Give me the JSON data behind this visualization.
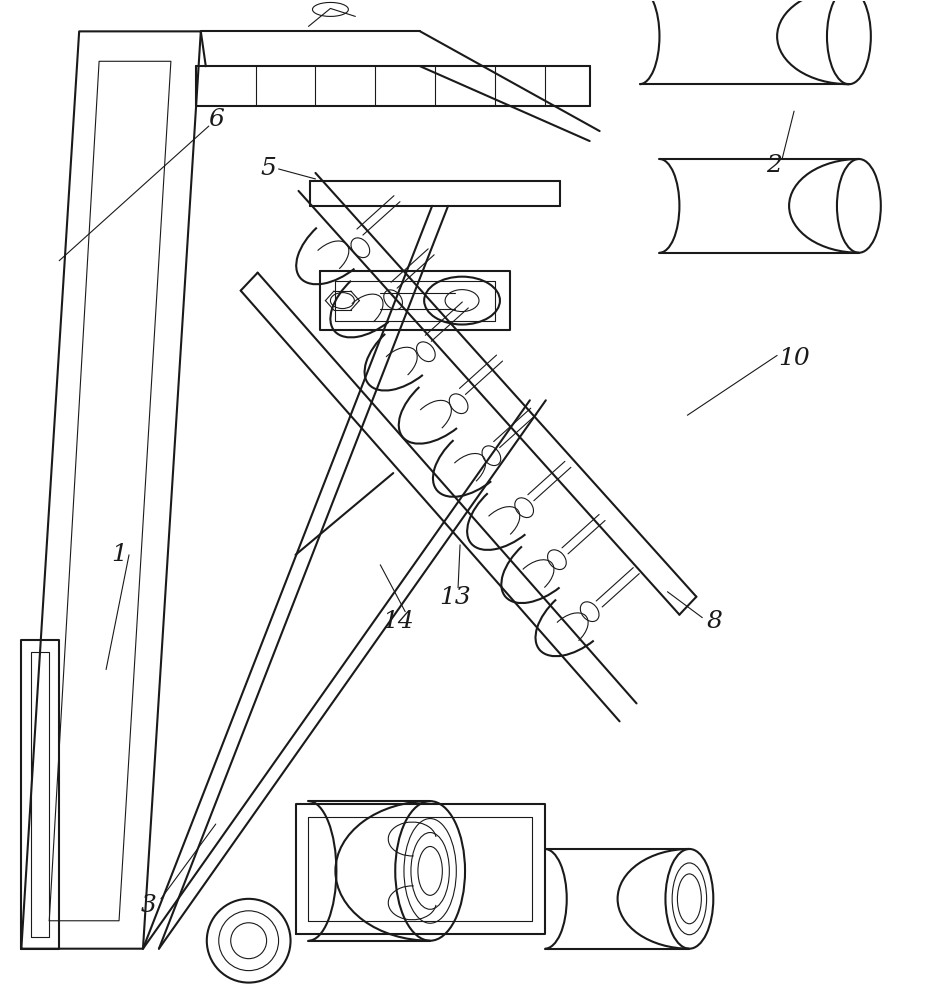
{
  "bg_color": "#ffffff",
  "line_color": "#1a1a1a",
  "lw": 1.5,
  "tlw": 0.8,
  "figsize": [
    9.53,
    10.0
  ],
  "dpi": 100
}
